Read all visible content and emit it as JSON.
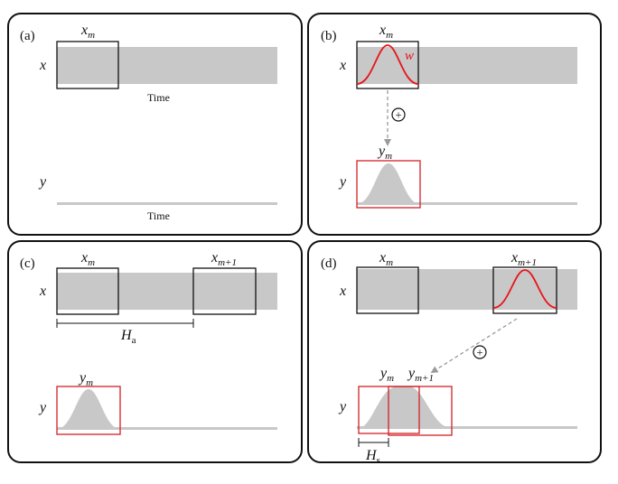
{
  "panels": {
    "a": {
      "tag": "(a)",
      "x_label": "x",
      "y_label": "y",
      "xm": "x",
      "xm_sub": "m",
      "time_top": "Time",
      "time_bottom": "Time"
    },
    "b": {
      "tag": "(b)",
      "x_label": "x",
      "y_label": "y",
      "xm": "x",
      "xm_sub": "m",
      "window_label": "w",
      "ym": "y",
      "ym_sub": "m",
      "add_symbol": "+"
    },
    "c": {
      "tag": "(c)",
      "x_label": "x",
      "y_label": "y",
      "xm": "x",
      "xm_sub": "m",
      "xm1": "x",
      "xm1_sub": "m+1",
      "ha": "H",
      "ha_sub": "a",
      "ym": "y",
      "ym_sub": "m"
    },
    "d": {
      "tag": "(d)",
      "x_label": "x",
      "y_label": "y",
      "xm": "x",
      "xm_sub": "m",
      "xm1": "x",
      "xm1_sub": "m+1",
      "ym": "y",
      "ym_sub": "m",
      "ym1": "y",
      "ym1_sub": "m+1",
      "hs": "H",
      "hs_sub": "s",
      "add_symbol": "+"
    }
  },
  "colors": {
    "signal_band": "#c8c8c8",
    "window_curve": "#e8141a",
    "frame_box": "#111111",
    "output_box": "#d32027",
    "arrow": "#9a9a9a"
  }
}
